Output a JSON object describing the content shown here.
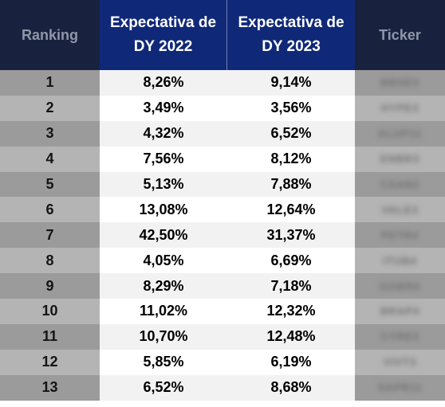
{
  "header": {
    "ranking": "Ranking",
    "dy2022": "Expectativa de DY 2022",
    "dy2023": "Expectativa de DY 2023",
    "ticker": "Ticker"
  },
  "rows": [
    {
      "rank": "1",
      "dy2022": "8,26%",
      "dy2023": "9,14%",
      "ticker": "BBSE3"
    },
    {
      "rank": "2",
      "dy2022": "3,49%",
      "dy2023": "3,56%",
      "ticker": "HYPE3"
    },
    {
      "rank": "3",
      "dy2022": "4,32%",
      "dy2023": "6,52%",
      "ticker": "ALUP11"
    },
    {
      "rank": "4",
      "dy2022": "7,56%",
      "dy2023": "8,12%",
      "ticker": "ENBR3"
    },
    {
      "rank": "5",
      "dy2022": "5,13%",
      "dy2023": "7,88%",
      "ticker": "CSAN3"
    },
    {
      "rank": "6",
      "dy2022": "13,08%",
      "dy2023": "12,64%",
      "ticker": "VALE3"
    },
    {
      "rank": "7",
      "dy2022": "42,50%",
      "dy2023": "31,37%",
      "ticker": "PETR4"
    },
    {
      "rank": "8",
      "dy2022": "4,05%",
      "dy2023": "6,69%",
      "ticker": "ITUB4"
    },
    {
      "rank": "9",
      "dy2022": "8,29%",
      "dy2023": "7,18%",
      "ticker": "GGBR4"
    },
    {
      "rank": "10",
      "dy2022": "11,02%",
      "dy2023": "12,32%",
      "ticker": "BRAP4"
    },
    {
      "rank": "11",
      "dy2022": "10,70%",
      "dy2023": "12,48%",
      "ticker": "CYRE3"
    },
    {
      "rank": "12",
      "dy2022": "5,85%",
      "dy2023": "6,19%",
      "ticker": "VIVT3"
    },
    {
      "rank": "13",
      "dy2022": "6,52%",
      "dy2023": "8,68%",
      "ticker": "SAPR11"
    }
  ]
}
